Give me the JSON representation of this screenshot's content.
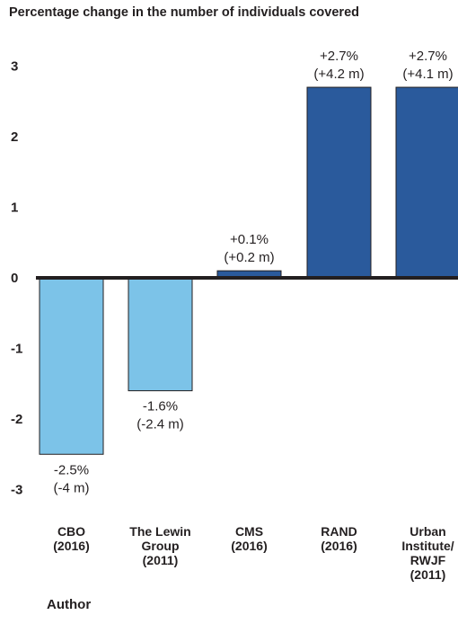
{
  "chart_data": {
    "type": "bar",
    "title": "Percentage change in the number of individuals covered",
    "xlabel": "Author",
    "ylabel": "",
    "ylim": [
      -3,
      3
    ],
    "yticks": [
      "3",
      "2",
      "1",
      "0",
      "-1",
      "-2",
      "-3"
    ],
    "categories": [
      "CBO\n(2016)",
      "The Lewin\nGroup\n(2011)",
      "CMS\n(2016)",
      "RAND\n(2016)",
      "Urban\nInstitute/\nRWJF\n(2011)"
    ],
    "values": [
      -2.5,
      -1.6,
      0.1,
      2.7,
      2.7
    ],
    "data_labels": [
      [
        "-2.5%",
        "(-4 m)"
      ],
      [
        "-1.6%",
        "(-2.4 m)"
      ],
      [
        "+0.1%",
        "(+0.2 m)"
      ],
      [
        "+2.7%",
        "(+4.2 m)"
      ],
      [
        "+2.7%",
        "(+4.1 m)"
      ]
    ],
    "colors": {
      "negative": "#7cc3e8",
      "positive": "#2a5a9c",
      "bar_outline": "#231f20",
      "zero_line": "#231f20"
    }
  }
}
